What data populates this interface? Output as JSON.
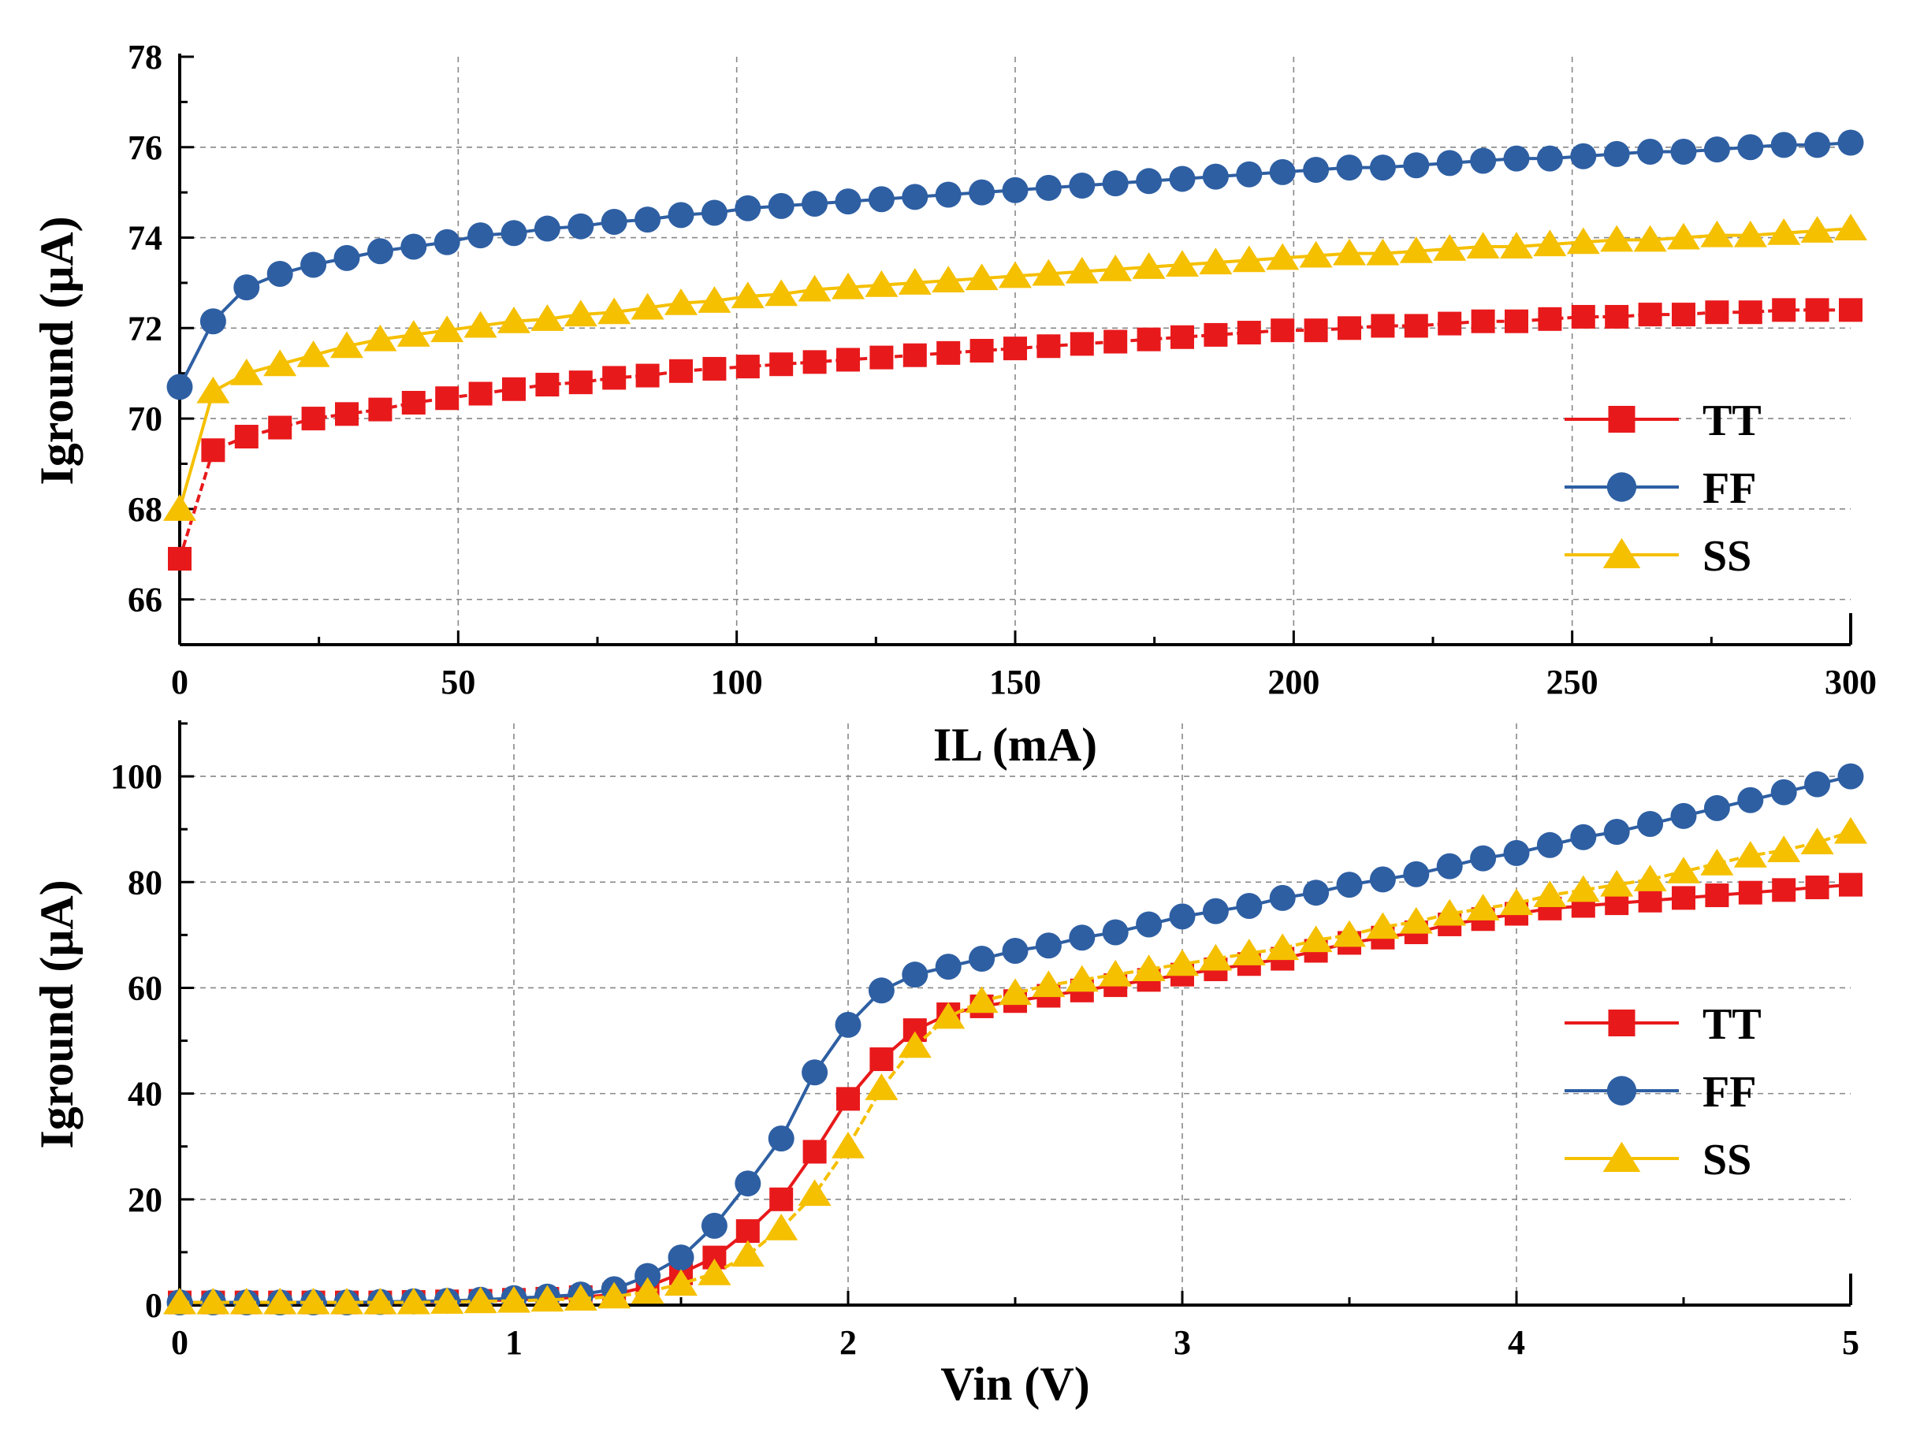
{
  "chart_data": [
    {
      "type": "line",
      "xlabel": "IL (mA)",
      "ylabel": "Iground (μA)",
      "xlim": [
        0,
        300
      ],
      "ylim": [
        65,
        78
      ],
      "xticks": [
        0,
        50,
        100,
        150,
        200,
        250,
        300
      ],
      "yticks": [
        66,
        68,
        70,
        72,
        74,
        76,
        78
      ],
      "grid": true,
      "legend_position": "right",
      "series": [
        {
          "name": "TT",
          "color": "#e8191b",
          "marker": "square",
          "x": [
            0,
            6,
            12,
            18,
            24,
            30,
            36,
            42,
            48,
            54,
            60,
            66,
            72,
            78,
            84,
            90,
            96,
            102,
            108,
            114,
            120,
            126,
            132,
            138,
            144,
            150,
            156,
            162,
            168,
            174,
            180,
            186,
            192,
            198,
            204,
            210,
            216,
            222,
            228,
            234,
            240,
            246,
            252,
            258,
            264,
            270,
            276,
            282,
            288,
            294,
            300
          ],
          "y": [
            66.9,
            69.3,
            69.6,
            69.8,
            70.0,
            70.1,
            70.2,
            70.35,
            70.45,
            70.55,
            70.65,
            70.75,
            70.8,
            70.9,
            70.95,
            71.05,
            71.1,
            71.15,
            71.2,
            71.25,
            71.3,
            71.35,
            71.4,
            71.45,
            71.5,
            71.55,
            71.6,
            71.65,
            71.7,
            71.75,
            71.8,
            71.85,
            71.9,
            71.95,
            71.95,
            72.0,
            72.05,
            72.05,
            72.1,
            72.15,
            72.15,
            72.2,
            72.25,
            72.25,
            72.3,
            72.3,
            72.35,
            72.35,
            72.4,
            72.4,
            72.4
          ]
        },
        {
          "name": "FF",
          "color": "#2e5fa3",
          "marker": "circle",
          "x": [
            0,
            6,
            12,
            18,
            24,
            30,
            36,
            42,
            48,
            54,
            60,
            66,
            72,
            78,
            84,
            90,
            96,
            102,
            108,
            114,
            120,
            126,
            132,
            138,
            144,
            150,
            156,
            162,
            168,
            174,
            180,
            186,
            192,
            198,
            204,
            210,
            216,
            222,
            228,
            234,
            240,
            246,
            252,
            258,
            264,
            270,
            276,
            282,
            288,
            294,
            300
          ],
          "y": [
            70.7,
            72.15,
            72.9,
            73.2,
            73.4,
            73.55,
            73.7,
            73.8,
            73.9,
            74.05,
            74.1,
            74.2,
            74.25,
            74.35,
            74.4,
            74.5,
            74.55,
            74.65,
            74.7,
            74.75,
            74.8,
            74.85,
            74.9,
            74.95,
            75.0,
            75.05,
            75.1,
            75.15,
            75.2,
            75.25,
            75.3,
            75.35,
            75.4,
            75.45,
            75.5,
            75.55,
            75.55,
            75.6,
            75.65,
            75.7,
            75.75,
            75.75,
            75.8,
            75.85,
            75.9,
            75.9,
            75.95,
            76.0,
            76.05,
            76.05,
            76.1
          ]
        },
        {
          "name": "SS",
          "color": "#f5c000",
          "marker": "triangle",
          "x": [
            0,
            6,
            12,
            18,
            24,
            30,
            36,
            42,
            48,
            54,
            60,
            66,
            72,
            78,
            84,
            90,
            96,
            102,
            108,
            114,
            120,
            126,
            132,
            138,
            144,
            150,
            156,
            162,
            168,
            174,
            180,
            186,
            192,
            198,
            204,
            210,
            216,
            222,
            228,
            234,
            240,
            246,
            252,
            258,
            264,
            270,
            276,
            282,
            288,
            294,
            300
          ],
          "y": [
            68.0,
            70.6,
            71.0,
            71.2,
            71.4,
            71.6,
            71.75,
            71.85,
            71.95,
            72.05,
            72.15,
            72.2,
            72.3,
            72.35,
            72.45,
            72.55,
            72.6,
            72.7,
            72.75,
            72.85,
            72.9,
            72.95,
            73.0,
            73.05,
            73.1,
            73.15,
            73.2,
            73.25,
            73.3,
            73.35,
            73.4,
            73.45,
            73.5,
            73.55,
            73.6,
            73.65,
            73.65,
            73.7,
            73.75,
            73.8,
            73.8,
            73.85,
            73.9,
            73.95,
            73.95,
            74.0,
            74.05,
            74.05,
            74.1,
            74.15,
            74.2
          ]
        }
      ]
    },
    {
      "type": "line",
      "xlabel": "Vin (V)",
      "ylabel": "Iground (μA)",
      "xlim": [
        0,
        5
      ],
      "ylim": [
        0,
        110
      ],
      "xticks": [
        0,
        1,
        2,
        3,
        4,
        5
      ],
      "yticks": [
        0,
        20,
        40,
        60,
        80,
        100
      ],
      "grid": true,
      "legend_position": "right",
      "series": [
        {
          "name": "TT",
          "color": "#e8191b",
          "marker": "square",
          "x": [
            0,
            0.1,
            0.2,
            0.3,
            0.4,
            0.5,
            0.6,
            0.7,
            0.8,
            0.9,
            1.0,
            1.1,
            1.2,
            1.3,
            1.4,
            1.5,
            1.6,
            1.7,
            1.8,
            1.9,
            2.0,
            2.1,
            2.2,
            2.3,
            2.4,
            2.5,
            2.6,
            2.7,
            2.8,
            2.9,
            3.0,
            3.1,
            3.2,
            3.3,
            3.4,
            3.5,
            3.6,
            3.7,
            3.8,
            3.9,
            4.0,
            4.1,
            4.2,
            4.3,
            4.4,
            4.5,
            4.6,
            4.7,
            4.8,
            4.9,
            5.0
          ],
          "y": [
            0.5,
            0.5,
            0.5,
            0.5,
            0.5,
            0.5,
            0.5,
            0.6,
            0.7,
            0.8,
            1.0,
            1.2,
            1.5,
            2.0,
            3.5,
            6.0,
            9.0,
            14.0,
            20.0,
            29.0,
            39.0,
            46.5,
            52.0,
            55.0,
            56.5,
            57.5,
            58.5,
            59.5,
            60.5,
            61.5,
            62.5,
            63.5,
            64.5,
            65.5,
            67.0,
            68.5,
            69.5,
            70.5,
            72.0,
            73.0,
            74.0,
            75.0,
            75.5,
            76.0,
            76.5,
            77.0,
            77.5,
            78.0,
            78.5,
            79.0,
            79.5
          ]
        },
        {
          "name": "FF",
          "color": "#2e5fa3",
          "marker": "circle",
          "x": [
            0,
            0.1,
            0.2,
            0.3,
            0.4,
            0.5,
            0.6,
            0.7,
            0.8,
            0.9,
            1.0,
            1.1,
            1.2,
            1.3,
            1.4,
            1.5,
            1.6,
            1.7,
            1.8,
            1.9,
            2.0,
            2.1,
            2.2,
            2.3,
            2.4,
            2.5,
            2.6,
            2.7,
            2.8,
            2.9,
            3.0,
            3.1,
            3.2,
            3.3,
            3.4,
            3.5,
            3.6,
            3.7,
            3.8,
            3.9,
            4.0,
            4.1,
            4.2,
            4.3,
            4.4,
            4.5,
            4.6,
            4.7,
            4.8,
            4.9,
            5.0
          ],
          "y": [
            0.5,
            0.5,
            0.5,
            0.5,
            0.5,
            0.5,
            0.6,
            0.7,
            0.8,
            1.0,
            1.3,
            1.6,
            2.0,
            3.0,
            5.5,
            9.0,
            15.0,
            23.0,
            31.5,
            44.0,
            53.0,
            59.5,
            62.5,
            64.0,
            65.5,
            67.0,
            68.0,
            69.5,
            70.5,
            72.0,
            73.5,
            74.5,
            75.5,
            77.0,
            78.0,
            79.5,
            80.5,
            81.5,
            83.0,
            84.5,
            85.5,
            87.0,
            88.5,
            89.5,
            91.0,
            92.5,
            94.0,
            95.5,
            97.0,
            98.5,
            100.0
          ]
        },
        {
          "name": "SS",
          "color": "#f5c000",
          "marker": "triangle",
          "x": [
            0,
            0.1,
            0.2,
            0.3,
            0.4,
            0.5,
            0.6,
            0.7,
            0.8,
            0.9,
            1.0,
            1.1,
            1.2,
            1.3,
            1.4,
            1.5,
            1.6,
            1.7,
            1.8,
            1.9,
            2.0,
            2.1,
            2.2,
            2.3,
            2.4,
            2.5,
            2.6,
            2.7,
            2.8,
            2.9,
            3.0,
            3.1,
            3.2,
            3.3,
            3.4,
            3.5,
            3.6,
            3.7,
            3.8,
            3.9,
            4.0,
            4.1,
            4.2,
            4.3,
            4.4,
            4.5,
            4.6,
            4.7,
            4.8,
            4.9,
            5.0
          ],
          "y": [
            0.5,
            0.5,
            0.5,
            0.5,
            0.5,
            0.5,
            0.5,
            0.5,
            0.6,
            0.7,
            0.8,
            1.0,
            1.2,
            1.6,
            2.5,
            4.0,
            6.0,
            9.5,
            14.5,
            21.0,
            30.0,
            41.0,
            49.0,
            54.5,
            57.5,
            59.0,
            60.5,
            61.5,
            62.5,
            63.5,
            64.5,
            65.5,
            66.5,
            67.5,
            69.0,
            70.0,
            71.5,
            72.5,
            74.0,
            75.0,
            76.0,
            77.5,
            78.5,
            79.5,
            80.5,
            82.0,
            83.5,
            85.0,
            86.0,
            87.5,
            89.5
          ]
        }
      ]
    }
  ]
}
